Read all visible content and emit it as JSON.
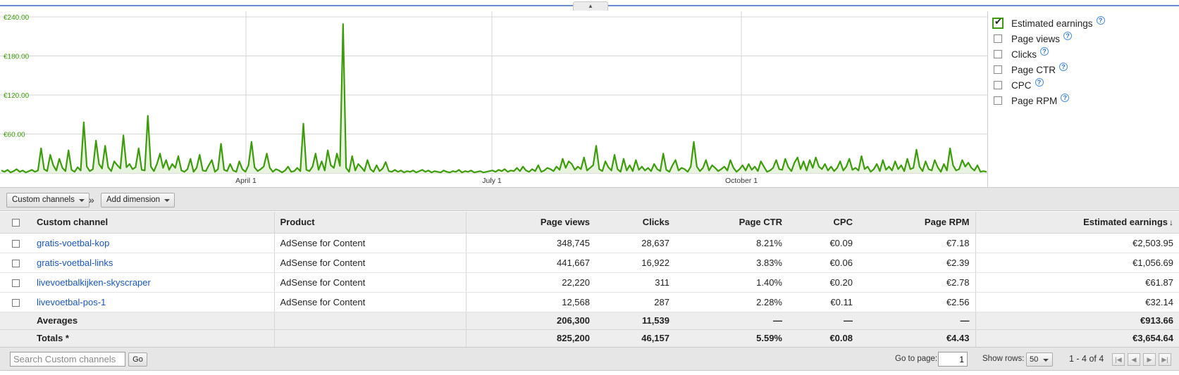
{
  "chart": {
    "y_ticks": [
      "€240.00",
      "€180.00",
      "€120.00",
      "€60.00"
    ],
    "x_ticks": [
      "April 1",
      "July 1",
      "October 1"
    ],
    "line_color": "#3d9b0c",
    "fill_color": "#e8f3df"
  },
  "chart_data": {
    "type": "area",
    "ylim": [
      0,
      240
    ],
    "series": [
      {
        "values": [
          4,
          2,
          5,
          1,
          3,
          6,
          2,
          4,
          1,
          3,
          5,
          2,
          4,
          38,
          6,
          3,
          28,
          12,
          4,
          22,
          8,
          3,
          35,
          5,
          2,
          9,
          4,
          78,
          10,
          3,
          6,
          50,
          14,
          7,
          42,
          9,
          3,
          18,
          12,
          7,
          58,
          9,
          14,
          6,
          9,
          38,
          5,
          4,
          88,
          10,
          3,
          14,
          30,
          8,
          20,
          5,
          14,
          8,
          26,
          4,
          2,
          6,
          22,
          2,
          8,
          28,
          4,
          3,
          12,
          20,
          2,
          6,
          45,
          5,
          3,
          14,
          4,
          2,
          18,
          6,
          2,
          12,
          48,
          9,
          3,
          6,
          10,
          30,
          8,
          2,
          6,
          4,
          1,
          4,
          10,
          2,
          3,
          8,
          3,
          76,
          5,
          3,
          10,
          30,
          5,
          18,
          4,
          35,
          12,
          8,
          30,
          11,
          229,
          8,
          2,
          26,
          4,
          14,
          9,
          3,
          20,
          6,
          2,
          12,
          3,
          7,
          17,
          3,
          2,
          5,
          2,
          4,
          1,
          3,
          2,
          4,
          1,
          3,
          5,
          2,
          4,
          1,
          3,
          2,
          1,
          4,
          2,
          1,
          3,
          2,
          5,
          1,
          3,
          2,
          4,
          1,
          2,
          3,
          1,
          2,
          3,
          4,
          2,
          5,
          3,
          6,
          2,
          4,
          3,
          8,
          3,
          10,
          4,
          2,
          6,
          3,
          12,
          2,
          4,
          8,
          6,
          3,
          10,
          5,
          22,
          8,
          18,
          14,
          5,
          10,
          6,
          24,
          4,
          8,
          12,
          42,
          6,
          3,
          18,
          9,
          4,
          28,
          6,
          2,
          22,
          4,
          12,
          3,
          20,
          5,
          10,
          4,
          8,
          3,
          14,
          6,
          3,
          30,
          5,
          2,
          12,
          20,
          4,
          8,
          6,
          2,
          10,
          48,
          10,
          3,
          8,
          20,
          4,
          12,
          8,
          3,
          6,
          10,
          4,
          20,
          8,
          2,
          6,
          12,
          4,
          14,
          5,
          10,
          3,
          18,
          10,
          2,
          4,
          8,
          20,
          6,
          5,
          22,
          9,
          3,
          16,
          24,
          6,
          18,
          4,
          20,
          8,
          24,
          10,
          6,
          14,
          4,
          10,
          3,
          8,
          18,
          4,
          10,
          22,
          5,
          8,
          4,
          26,
          6,
          10,
          2,
          6,
          14,
          3,
          20,
          5,
          10,
          4,
          18,
          6,
          12,
          3,
          22,
          6,
          8,
          36,
          10,
          3,
          18,
          6,
          4,
          20,
          9,
          2,
          14,
          4,
          38,
          12,
          4,
          6,
          20,
          10,
          16,
          8,
          4,
          12,
          2,
          3,
          2
        ]
      }
    ]
  },
  "metrics": [
    {
      "label": "Estimated earnings",
      "checked": true
    },
    {
      "label": "Page views",
      "checked": false
    },
    {
      "label": "Clicks",
      "checked": false
    },
    {
      "label": "Page CTR",
      "checked": false
    },
    {
      "label": "CPC",
      "checked": false
    },
    {
      "label": "Page RPM",
      "checked": false
    }
  ],
  "toolbar": {
    "dimension_label": "Custom channels",
    "separator": "»",
    "add_dimension_label": "Add dimension"
  },
  "table": {
    "headers": [
      "Custom channel",
      "Product",
      "Page views",
      "Clicks",
      "Page CTR",
      "CPC",
      "Page RPM",
      "Estimated earnings"
    ],
    "sort_indicator": "↓",
    "rows": [
      [
        "gratis-voetbal-kop",
        "AdSense for Content",
        "348,745",
        "28,637",
        "8.21%",
        "€0.09",
        "€7.18",
        "€2,503.95"
      ],
      [
        "gratis-voetbal-links",
        "AdSense for Content",
        "441,667",
        "16,922",
        "3.83%",
        "€0.06",
        "€2.39",
        "€1,056.69"
      ],
      [
        "livevoetbalkijken-skyscraper",
        "AdSense for Content",
        "22,220",
        "311",
        "1.40%",
        "€0.20",
        "€2.78",
        "€61.87"
      ],
      [
        "livevoetbal-pos-1",
        "AdSense for Content",
        "12,568",
        "287",
        "2.28%",
        "€0.11",
        "€2.56",
        "€32.14"
      ]
    ],
    "averages": [
      "Averages",
      "",
      "206,300",
      "11,539",
      "—",
      "—",
      "—",
      "€913.66"
    ],
    "totals": [
      "Totals *",
      "",
      "825,200",
      "46,157",
      "5.59%",
      "€0.08",
      "€4.43",
      "€3,654.64"
    ]
  },
  "footer": {
    "search_placeholder": "Search Custom channels",
    "go_label": "Go",
    "go_to_page_label": "Go to page:",
    "page_value": "1",
    "show_rows_label": "Show rows:",
    "rows_value": "50",
    "range_text": "1 - 4 of 4"
  }
}
